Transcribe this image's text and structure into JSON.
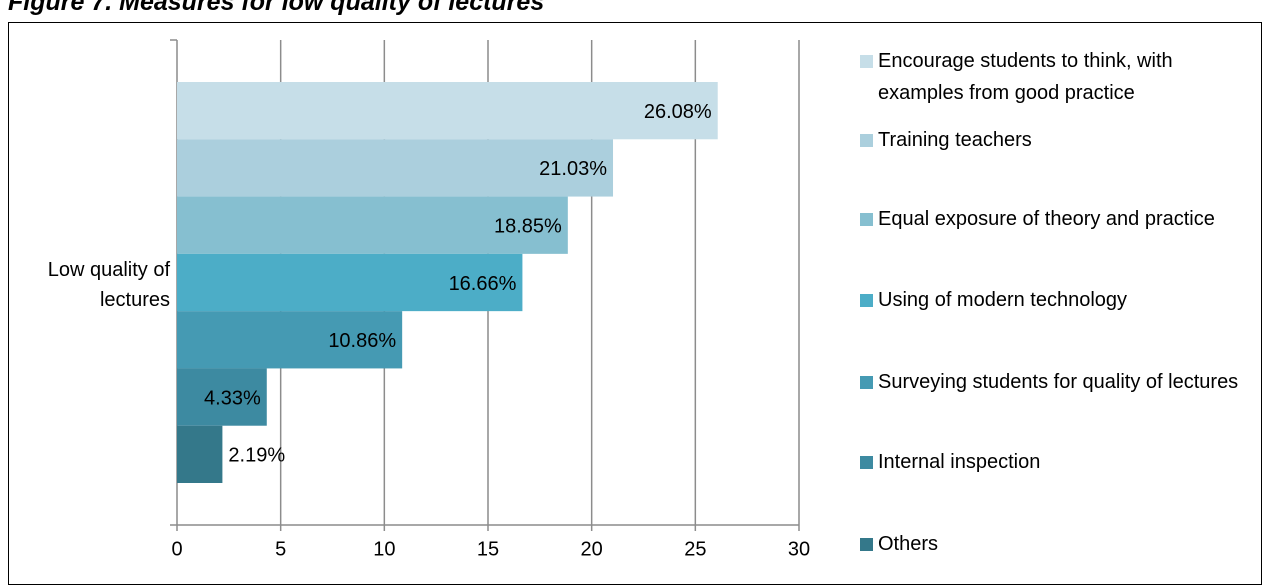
{
  "chart_data": {
    "type": "bar",
    "orientation": "horizontal",
    "title": "Figure 7. Measures for low quality of lectures",
    "categories": [
      "Low quality of lectures"
    ],
    "xlim": [
      0,
      30
    ],
    "xticks": [
      0,
      5,
      10,
      15,
      20,
      25,
      30
    ],
    "grid": true,
    "legend": "right",
    "series": [
      {
        "name": "Encourage students to think, with examples from good practice",
        "color": "#c6dee8",
        "values": [
          26.08
        ],
        "value_labels": [
          "26.08%"
        ]
      },
      {
        "name": "Training teachers",
        "color": "#abcfdd",
        "values": [
          21.03
        ],
        "value_labels": [
          "21.03%"
        ]
      },
      {
        "name": "Equal exposure of theory and practice",
        "color": "#86bfd0",
        "values": [
          18.85
        ],
        "value_labels": [
          "18.85%"
        ]
      },
      {
        "name": "Using of modern technology",
        "color": "#4cadc7",
        "values": [
          16.66
        ],
        "value_labels": [
          "16.66%"
        ]
      },
      {
        "name": "Surveying students for quality of lectures",
        "color": "#459ab3",
        "values": [
          10.86
        ],
        "value_labels": [
          "10.86%"
        ]
      },
      {
        "name": "Internal inspection",
        "color": "#3d8aa1",
        "values": [
          4.33
        ],
        "value_labels": [
          "4.33%"
        ]
      },
      {
        "name": "Others",
        "color": "#34788a",
        "values": [
          2.19
        ],
        "value_labels": [
          "2.19%"
        ]
      }
    ]
  }
}
